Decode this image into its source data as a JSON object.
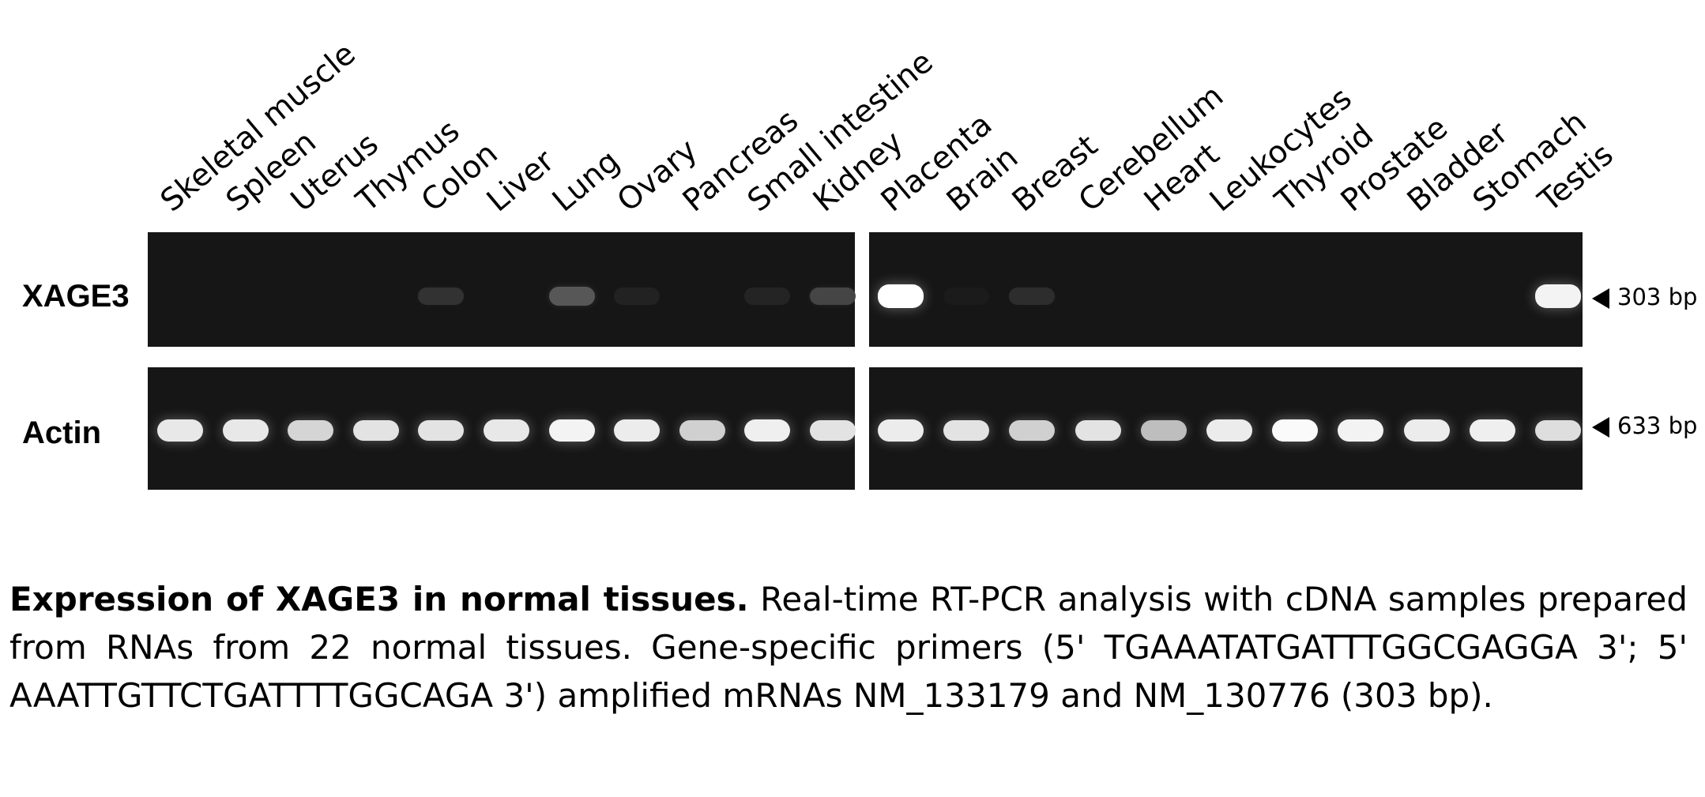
{
  "figure": {
    "lanes": [
      "Skeletal muscle",
      "Spleen",
      "Uterus",
      "Thymus",
      "Colon",
      "Liver",
      "Lung",
      "Ovary",
      "Pancreas",
      "Small intestine",
      "Kidney",
      "Placenta",
      "Brain",
      "Breast",
      "Cerebellum",
      "Heart",
      "Leukocytes",
      "Thyroid",
      "Prostate",
      "Bladder",
      "Stomach",
      "Testis"
    ],
    "rows": [
      {
        "label": "XAGE3",
        "size": "303 bp",
        "intensities": [
          0,
          0,
          0,
          0,
          0.12,
          0,
          0.28,
          0.05,
          0,
          0.06,
          0.2,
          1.0,
          0.02,
          0.1,
          0,
          0,
          0,
          0,
          0,
          0,
          0,
          0.95
        ]
      },
      {
        "label": "Actin",
        "size": "633 bp",
        "intensities": [
          0.9,
          0.9,
          0.82,
          0.88,
          0.88,
          0.9,
          0.95,
          0.92,
          0.8,
          0.93,
          0.88,
          0.92,
          0.88,
          0.8,
          0.88,
          0.72,
          0.92,
          0.98,
          0.95,
          0.92,
          0.93,
          0.86
        ]
      }
    ]
  },
  "caption": {
    "title": "Expression of XAGE3 in normal tissues.",
    "body": "Real-time RT-PCR  analysis with cDNA samples prepared from RNAs from 22 normal tissues. Gene-specific primers (5' TGAAATATGATTTGGCGAGGA 3'; 5' AAATTGTTCTGATTTTGGCAGA 3') amplified mRNAs NM_133179 and NM_130776 (303 bp)."
  }
}
